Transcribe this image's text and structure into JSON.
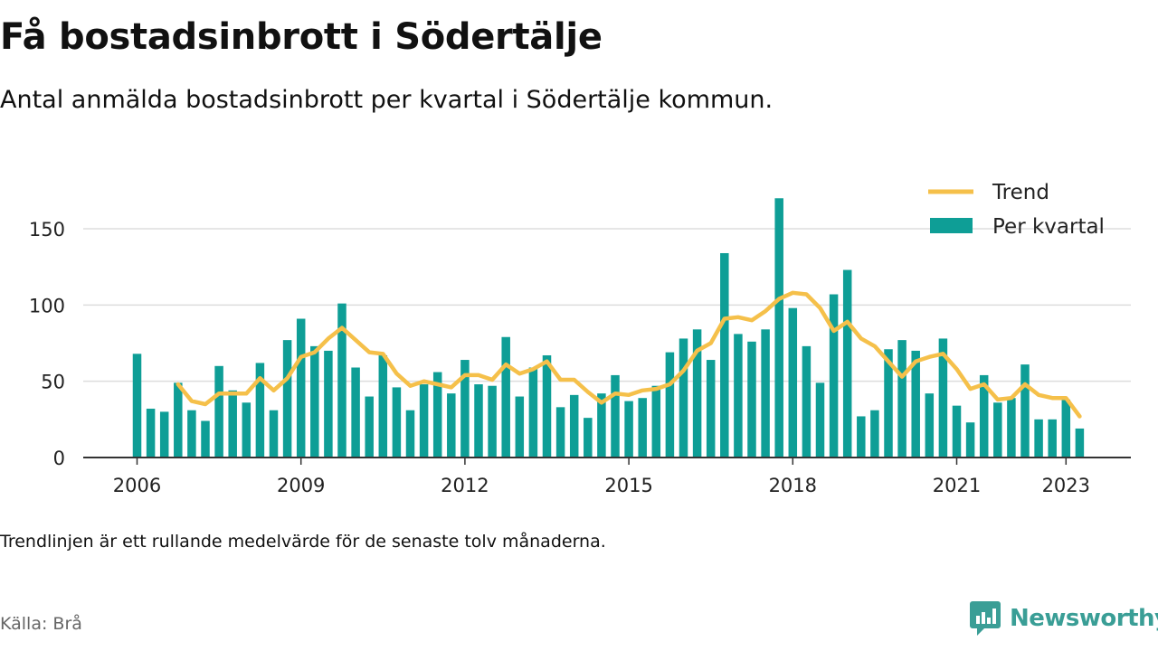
{
  "header": {
    "title": "Få bostadsinbrott i Södertälje",
    "subtitle": "Antal anmälda bostadsinbrott per kvartal i Södertälje kommun."
  },
  "footer": {
    "note": "Trendlinjen är ett rullande medelvärde för de senaste tolv månaderna.",
    "source": "Källa: Brå",
    "brand": "Newsworthy"
  },
  "colors": {
    "bar": "#0e9e96",
    "trend": "#f5c04a",
    "axis": "#333333",
    "grid": "#dddddd",
    "brand": "#3a9e96"
  },
  "chart_data": {
    "type": "bar",
    "title": "Få bostadsinbrott i Södertälje",
    "subtitle": "Antal anmälda bostadsinbrott per kvartal i Södertälje kommun.",
    "xlabel": "",
    "ylabel": "",
    "ylim": [
      0,
      175
    ],
    "yticks": [
      0,
      50,
      100,
      150
    ],
    "xtick_labels": [
      "2006",
      "2009",
      "2012",
      "2015",
      "2018",
      "2021",
      "2023"
    ],
    "grid": true,
    "legend_position": "top-right",
    "categories": [
      "2006 Q1",
      "2006 Q2",
      "2006 Q3",
      "2006 Q4",
      "2007 Q1",
      "2007 Q2",
      "2007 Q3",
      "2007 Q4",
      "2008 Q1",
      "2008 Q2",
      "2008 Q3",
      "2008 Q4",
      "2009 Q1",
      "2009 Q2",
      "2009 Q3",
      "2009 Q4",
      "2010 Q1",
      "2010 Q2",
      "2010 Q3",
      "2010 Q4",
      "2011 Q1",
      "2011 Q2",
      "2011 Q3",
      "2011 Q4",
      "2012 Q1",
      "2012 Q2",
      "2012 Q3",
      "2012 Q4",
      "2013 Q1",
      "2013 Q2",
      "2013 Q3",
      "2013 Q4",
      "2014 Q1",
      "2014 Q2",
      "2014 Q3",
      "2014 Q4",
      "2015 Q1",
      "2015 Q2",
      "2015 Q3",
      "2015 Q4",
      "2016 Q1",
      "2016 Q2",
      "2016 Q3",
      "2016 Q4",
      "2017 Q1",
      "2017 Q2",
      "2017 Q3",
      "2017 Q4",
      "2018 Q1",
      "2018 Q2",
      "2018 Q3",
      "2018 Q4",
      "2019 Q1",
      "2019 Q2",
      "2019 Q3",
      "2019 Q4",
      "2020 Q1",
      "2020 Q2",
      "2020 Q3",
      "2020 Q4",
      "2021 Q1",
      "2021 Q2",
      "2021 Q3",
      "2021 Q4",
      "2022 Q1",
      "2022 Q2",
      "2022 Q3",
      "2022 Q4",
      "2023 Q1",
      "2023 Q2"
    ],
    "series": [
      {
        "name": "Per kvartal",
        "type": "bar",
        "values": [
          68,
          32,
          30,
          49,
          31,
          24,
          60,
          44,
          36,
          62,
          31,
          77,
          91,
          73,
          70,
          101,
          59,
          40,
          67,
          46,
          31,
          48,
          56,
          42,
          64,
          48,
          47,
          79,
          40,
          59,
          67,
          33,
          41,
          26,
          42,
          54,
          37,
          39,
          47,
          69,
          78,
          84,
          64,
          134,
          81,
          76,
          84,
          170,
          98,
          73,
          49,
          107,
          123,
          27,
          31,
          71,
          77,
          70,
          42,
          78,
          34,
          23,
          54,
          36,
          39,
          61,
          25,
          25,
          38,
          19
        ]
      },
      {
        "name": "Trend",
        "type": "line",
        "values": [
          null,
          null,
          null,
          48,
          37,
          35,
          42,
          42,
          42,
          52,
          44,
          52,
          66,
          69,
          78,
          85,
          77,
          69,
          68,
          55,
          47,
          50,
          48,
          46,
          54,
          54,
          51,
          61,
          55,
          58,
          63,
          51,
          51,
          43,
          36,
          42,
          41,
          44,
          45,
          48,
          57,
          70,
          75,
          91,
          92,
          90,
          96,
          104,
          108,
          107,
          98,
          83,
          89,
          78,
          73,
          63,
          53,
          63,
          66,
          68,
          58,
          45,
          48,
          38,
          39,
          48,
          41,
          39,
          39,
          27
        ]
      }
    ]
  }
}
